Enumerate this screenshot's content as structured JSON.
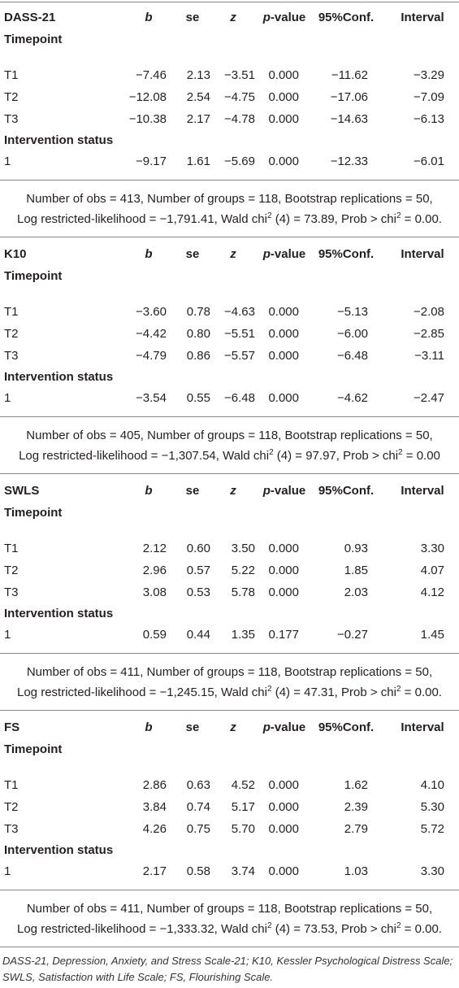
{
  "columns": {
    "b": "b",
    "se": "se",
    "z": "z",
    "p_label": "p",
    "p_suffix": "-value",
    "conf": "95%Conf.",
    "interval": "Interval"
  },
  "row_group_timepoint": "Timepoint",
  "row_group_intervention": "Intervention status",
  "blocks": [
    {
      "scale": "DASS-21",
      "rows": [
        {
          "label": "T1",
          "b": "−7.46",
          "se": "2.13",
          "z": "−3.51",
          "p": "0.000",
          "lo": "−11.62",
          "hi": "−3.29"
        },
        {
          "label": "T2",
          "b": "−12.08",
          "se": "2.54",
          "z": "−4.75",
          "p": "0.000",
          "lo": "−17.06",
          "hi": "−7.09"
        },
        {
          "label": "T3",
          "b": "−10.38",
          "se": "2.17",
          "z": "−4.78",
          "p": "0.000",
          "lo": "−14.63",
          "hi": "−6.13"
        }
      ],
      "intervention": {
        "label": "1",
        "b": "−9.17",
        "se": "1.61",
        "z": "−5.69",
        "p": "0.000",
        "lo": "−12.33",
        "hi": "−6.01"
      },
      "stat1": "Number of obs = 413, Number of groups = 118, Bootstrap replications = 50,",
      "stat2_a": "Log restricted-likelihood = −1,791.41, Wald chi",
      "stat2_b": "2",
      "stat2_c": " (4) = 73.89, Prob > chi",
      "stat2_d": "2",
      "stat2_e": " = 0.00."
    },
    {
      "scale": "K10",
      "rows": [
        {
          "label": "T1",
          "b": "−3.60",
          "se": "0.78",
          "z": "−4.63",
          "p": "0.000",
          "lo": "−5.13",
          "hi": "−2.08"
        },
        {
          "label": "T2",
          "b": "−4.42",
          "se": "0.80",
          "z": "−5.51",
          "p": "0.000",
          "lo": "−6.00",
          "hi": "−2.85"
        },
        {
          "label": "T3",
          "b": "−4.79",
          "se": "0.86",
          "z": "−5.57",
          "p": "0.000",
          "lo": "−6.48",
          "hi": "−3.11"
        }
      ],
      "intervention": {
        "label": "1",
        "b": "−3.54",
        "se": "0.55",
        "z": "−6.48",
        "p": "0.000",
        "lo": "−4.62",
        "hi": "−2.47"
      },
      "stat1": "Number of obs = 405, Number of groups = 118, Bootstrap replications = 50,",
      "stat2_a": "Log restricted-likelihood = −1,307.54, Wald chi",
      "stat2_b": "2",
      "stat2_c": " (4) = 97.97, Prob > chi",
      "stat2_d": "2",
      "stat2_e": " = 0.00"
    },
    {
      "scale": "SWLS",
      "rows": [
        {
          "label": "T1",
          "b": "2.12",
          "se": "0.60",
          "z": "3.50",
          "p": "0.000",
          "lo": "0.93",
          "hi": "3.30"
        },
        {
          "label": "T2",
          "b": "2.96",
          "se": "0.57",
          "z": "5.22",
          "p": "0.000",
          "lo": "1.85",
          "hi": "4.07"
        },
        {
          "label": "T3",
          "b": "3.08",
          "se": "0.53",
          "z": "5.78",
          "p": "0.000",
          "lo": "2.03",
          "hi": "4.12"
        }
      ],
      "intervention": {
        "label": "1",
        "b": "0.59",
        "se": "0.44",
        "z": "1.35",
        "p": "0.177",
        "lo": "−0.27",
        "hi": "1.45"
      },
      "stat1": "Number of obs = 411, Number of groups = 118, Bootstrap replications = 50,",
      "stat2_a": "Log restricted-likelihood = −1,245.15, Wald chi",
      "stat2_b": "2",
      "stat2_c": " (4) = 47.31, Prob > chi",
      "stat2_d": "2",
      "stat2_e": " = 0.00."
    },
    {
      "scale": "FS",
      "rows": [
        {
          "label": "T1",
          "b": "2.86",
          "se": "0.63",
          "z": "4.52",
          "p": "0.000",
          "lo": "1.62",
          "hi": "4.10"
        },
        {
          "label": "T2",
          "b": "3.84",
          "se": "0.74",
          "z": "5.17",
          "p": "0.000",
          "lo": "2.39",
          "hi": "5.30"
        },
        {
          "label": "T3",
          "b": "4.26",
          "se": "0.75",
          "z": "5.70",
          "p": "0.000",
          "lo": "2.79",
          "hi": "5.72"
        }
      ],
      "intervention": {
        "label": "1",
        "b": "2.17",
        "se": "0.58",
        "z": "3.74",
        "p": "0.000",
        "lo": "1.03",
        "hi": "3.30"
      },
      "stat1": "Number of obs = 411, Number of groups = 118, Bootstrap replications = 50,",
      "stat2_a": "Log restricted-likelihood = −1,333.32, Wald chi",
      "stat2_b": "2",
      "stat2_c": " (4) = 73.53, Prob > chi",
      "stat2_d": "2",
      "stat2_e": " = 0.00."
    }
  ],
  "footnote": "DASS-21, Depression, Anxiety, and Stress Scale-21; K10, Kessler Psychological Distress Scale; SWLS, Satisfaction with Life Scale; FS, Flourishing Scale."
}
